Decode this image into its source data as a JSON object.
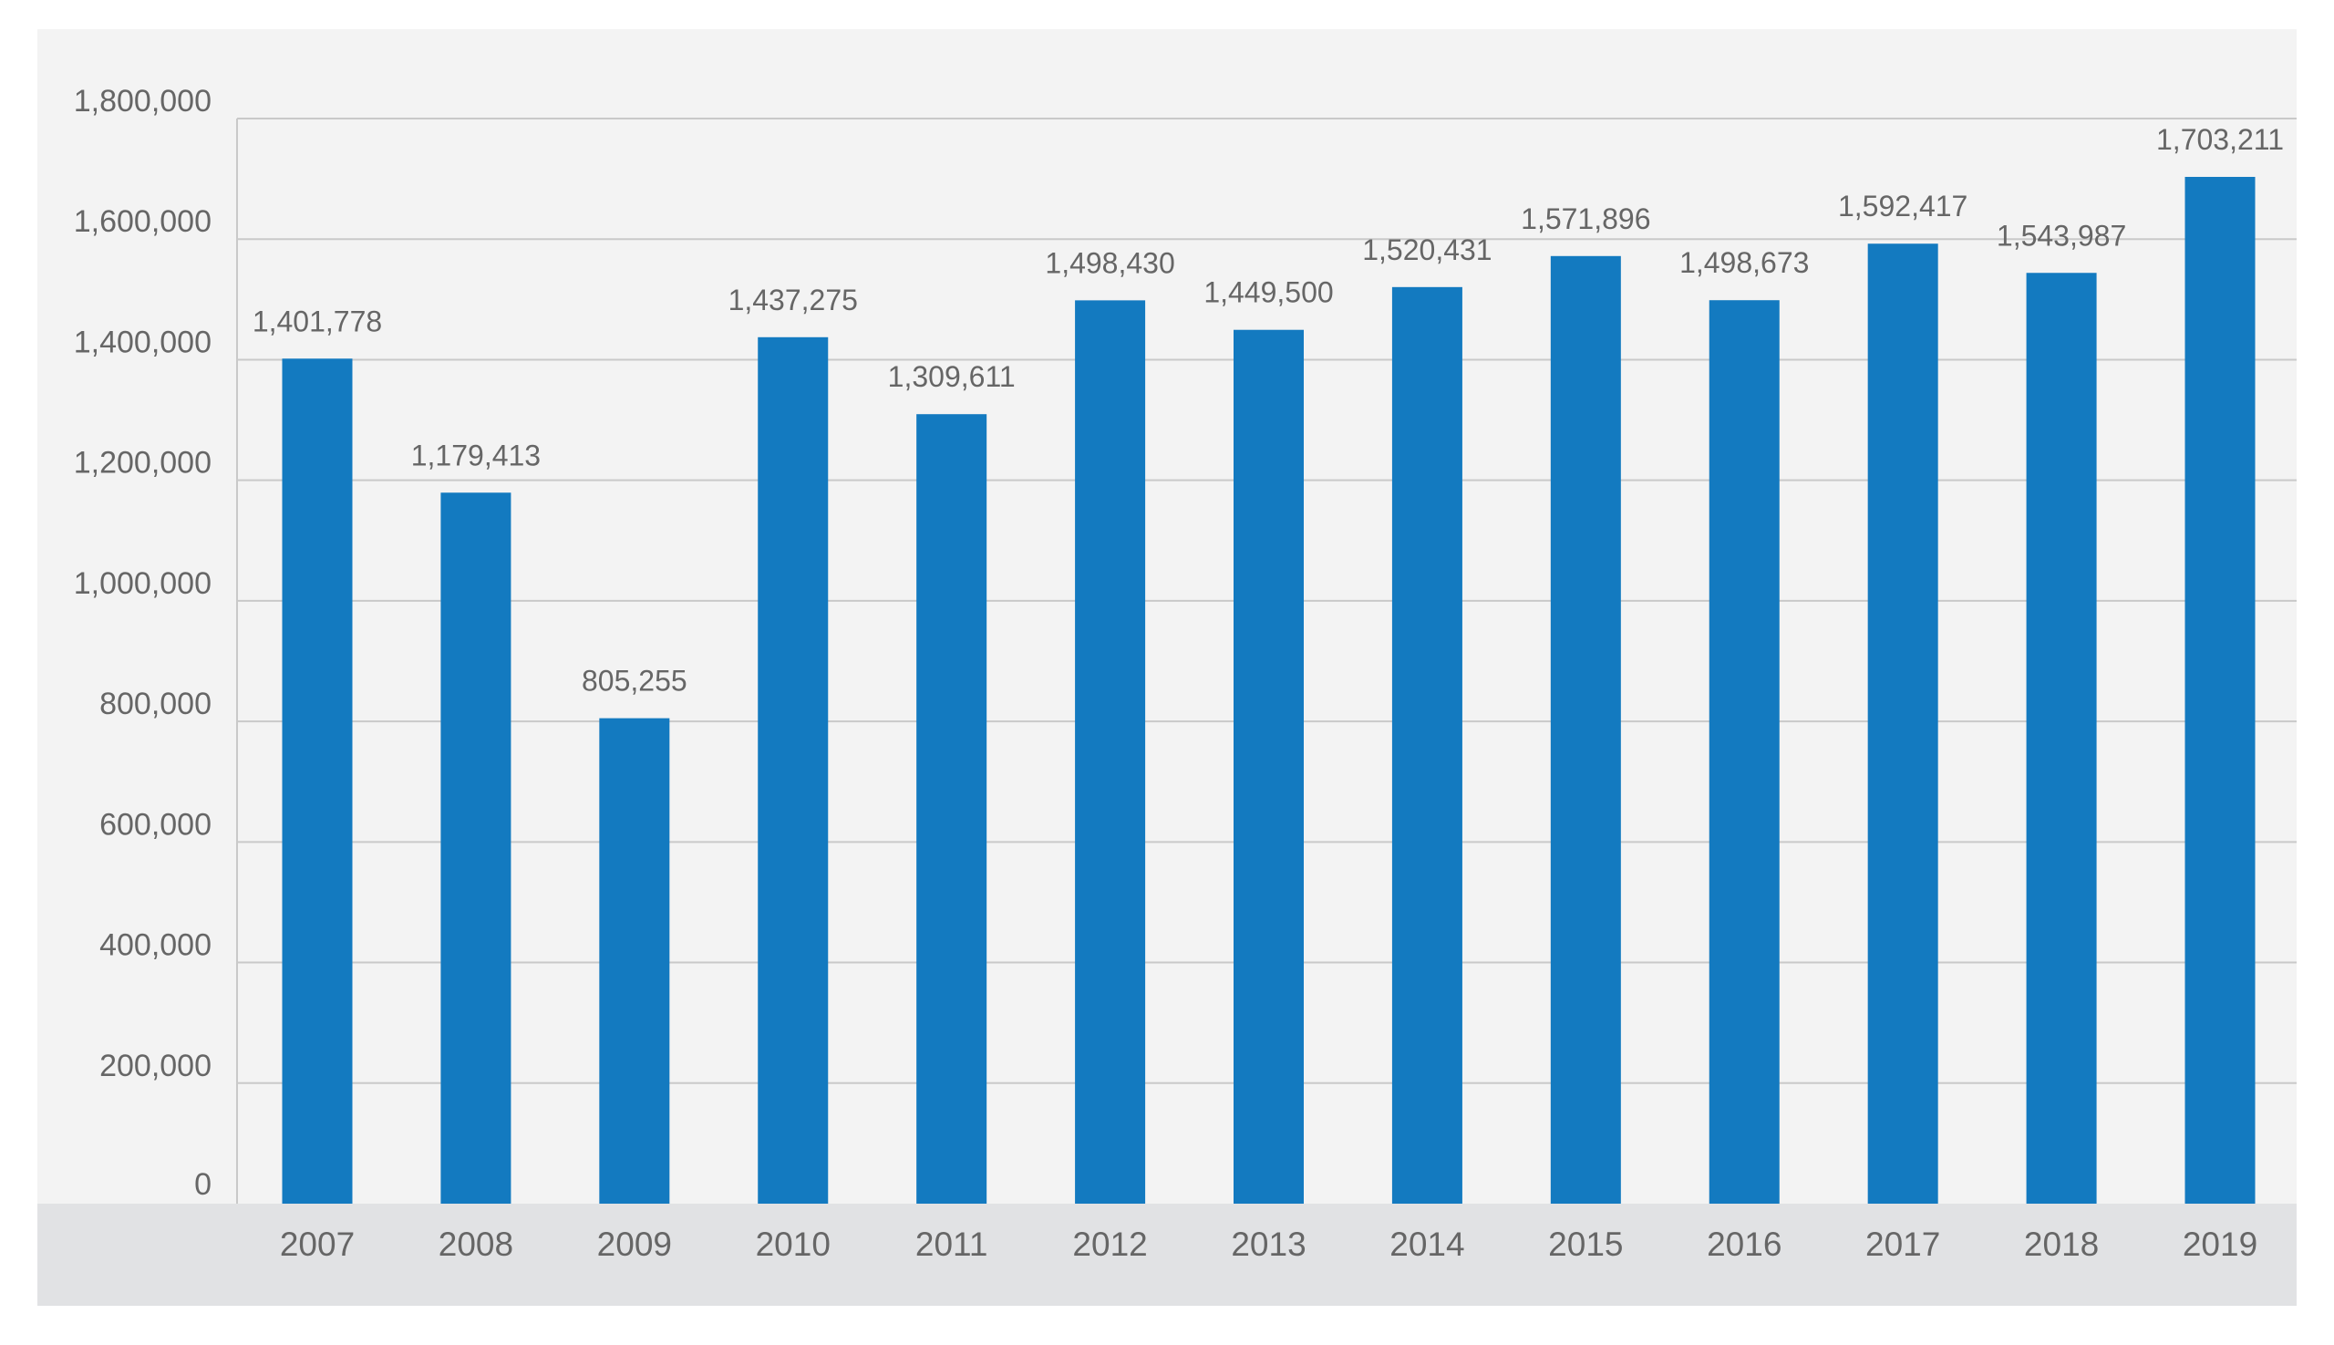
{
  "chart_data": {
    "type": "bar",
    "title": "",
    "xlabel": "",
    "ylabel": "",
    "categories": [
      "2007",
      "2008",
      "2009",
      "2010",
      "2011",
      "2012",
      "2013",
      "2014",
      "2015",
      "2016",
      "2017",
      "2018",
      "2019"
    ],
    "values": [
      1401778,
      1179413,
      805255,
      1437275,
      1309611,
      1498430,
      1449500,
      1520431,
      1571896,
      1498673,
      1592417,
      1543987,
      1703211
    ],
    "value_labels": [
      "1,401,778",
      "1,179,413",
      "805,255",
      "1,437,275",
      "1,309,611",
      "1,498,430",
      "1,449,500",
      "1,520,431",
      "1,571,896",
      "1,498,673",
      "1,592,417",
      "1,543,987",
      "1,703,211"
    ],
    "ylim": [
      0,
      1800000
    ],
    "yticks": [
      0,
      200000,
      400000,
      600000,
      800000,
      1000000,
      1200000,
      1400000,
      1600000,
      1800000
    ],
    "ytick_labels": [
      "0",
      "200,000",
      "400,000",
      "600,000",
      "800,000",
      "1,000,000",
      "1,200,000",
      "1,400,000",
      "1,600,000",
      "1,800,000"
    ],
    "grid": true,
    "legend": "none",
    "colors": {
      "bar": "#137ac0",
      "plot_background": "#f3f3f3",
      "category_band": "#e1e2e4",
      "gridline": "#c9c9c9",
      "text": "#666666"
    }
  }
}
